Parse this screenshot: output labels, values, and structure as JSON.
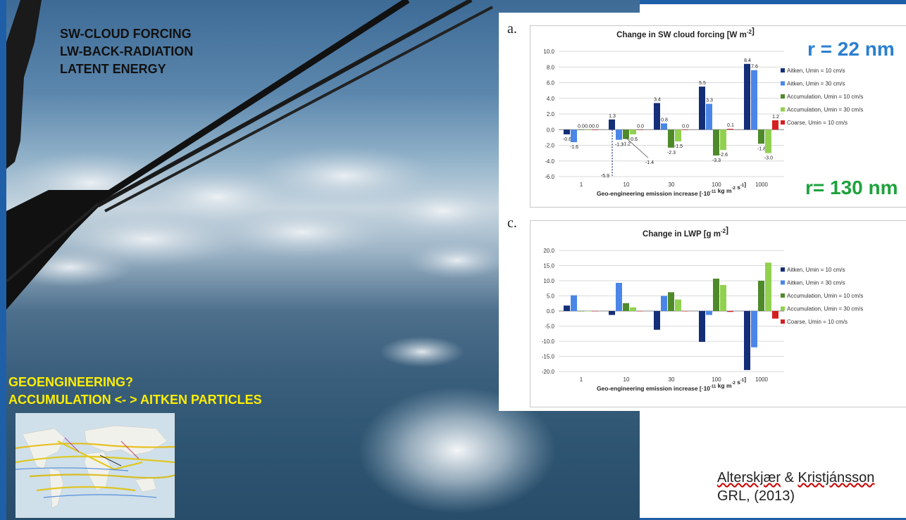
{
  "overlay": {
    "lines": [
      "SW-CLOUD FORCING",
      "LW-BACK-RADIATION",
      "LATENT ENERGY"
    ],
    "geo_lines": [
      "GEOENGINEERING?",
      "ACCUMULATION  <- > AITKEN PARTICLES"
    ]
  },
  "panel_a": {
    "letter": "a."
  },
  "panel_c": {
    "letter": "c."
  },
  "annotations": {
    "r_small": "r = 22 nm",
    "r_large": "r= 130 nm",
    "r_small_color": "#2b7fd0",
    "r_large_color": "#1ea23c"
  },
  "citation": {
    "line1a": "Alterskjær",
    "line1b": "&",
    "line1c": "Kristjánsson",
    "line2": "GRL, (2013)"
  },
  "series_colors": [
    "#142e78",
    "#4a86e8",
    "#4e8a2a",
    "#92d050",
    "#d42020"
  ],
  "chart_data": [
    {
      "type": "bar",
      "title": "Change in SW cloud forcing [W m-2]",
      "xlabel": "Geo-engineering emission increase [·10-11 kg m-2 s-1]",
      "ylabel": "",
      "categories": [
        "1",
        "10",
        "30",
        "100",
        "1000"
      ],
      "ylim": [
        -6.0,
        10.0
      ],
      "yticks": [
        "10.0",
        "8.0",
        "6.0",
        "4.0",
        "2.0",
        "0.0",
        "-2.0",
        "-4.0",
        "-6.0"
      ],
      "series": [
        {
          "name": "Aitken, Umin = 10 cm/s",
          "values": [
            -0.6,
            1.3,
            3.4,
            5.5,
            8.4
          ]
        },
        {
          "name": "Aitken, Umin = 30 cm/s",
          "values": [
            -1.6,
            -1.3,
            0.8,
            3.3,
            7.6
          ]
        },
        {
          "name": "Accumulation, Umin = 10 cm/s",
          "values": [
            0.0,
            -1.2,
            -2.3,
            -3.3,
            -1.8
          ]
        },
        {
          "name": "Accumulation, Umin = 30 cm/s",
          "values": [
            0.0,
            -0.6,
            -1.5,
            -2.6,
            -3.0
          ]
        },
        {
          "name": "Coarse, Umin = 10 cm/s",
          "values": [
            0.0,
            0.0,
            0.0,
            0.1,
            1.2
          ]
        }
      ],
      "data_labels": [
        [
          "-0.6",
          "-1.6",
          "0.0",
          "0.0",
          "0.0"
        ],
        [
          "1.3",
          "-1.3",
          "-1.2",
          "-0.6",
          "0.0"
        ],
        [
          "3.4",
          "0.8",
          "-2.3",
          "-1.5",
          "0.0"
        ],
        [
          "5.5",
          "3.3",
          "-3.3",
          "-2.6",
          "0.1"
        ],
        [
          "8.4",
          "7.6",
          "-1.8",
          "-3.0",
          "1.2"
        ]
      ],
      "extra_labels": {
        "dashed_value": "-5.9",
        "callout_value": "-1.4"
      },
      "grid": true,
      "legend": "right"
    },
    {
      "type": "bar",
      "title": "Change in LWP [g m-2]",
      "xlabel": "Geo-engineering emission increase [·10-11 kg m-2 s-1]",
      "ylabel": "",
      "categories": [
        "1",
        "10",
        "30",
        "100",
        "1000"
      ],
      "ylim": [
        -20.0,
        20.0
      ],
      "yticks": [
        "20.0",
        "15.0",
        "10.0",
        "5.0",
        "0.0",
        "-5.0",
        "-10.0",
        "-15.0",
        "-20.0"
      ],
      "series": [
        {
          "name": "Aitken, Umin = 10 cm/s",
          "values": [
            1.8,
            -1.3,
            -6.2,
            -10.2,
            -19.5
          ]
        },
        {
          "name": "Aitken, Umin = 30 cm/s",
          "values": [
            5.2,
            9.3,
            5.0,
            -1.3,
            -12.0
          ]
        },
        {
          "name": "Accumulation, Umin = 10 cm/s",
          "values": [
            0.0,
            2.6,
            6.2,
            10.7,
            10.0
          ]
        },
        {
          "name": "Accumulation, Umin = 30 cm/s",
          "values": [
            0.0,
            1.2,
            3.8,
            8.6,
            16.0
          ]
        },
        {
          "name": "Coarse, Umin = 10 cm/s",
          "values": [
            0.0,
            0.0,
            0.0,
            -0.3,
            -2.5
          ]
        }
      ],
      "grid": true,
      "legend": "right"
    }
  ]
}
